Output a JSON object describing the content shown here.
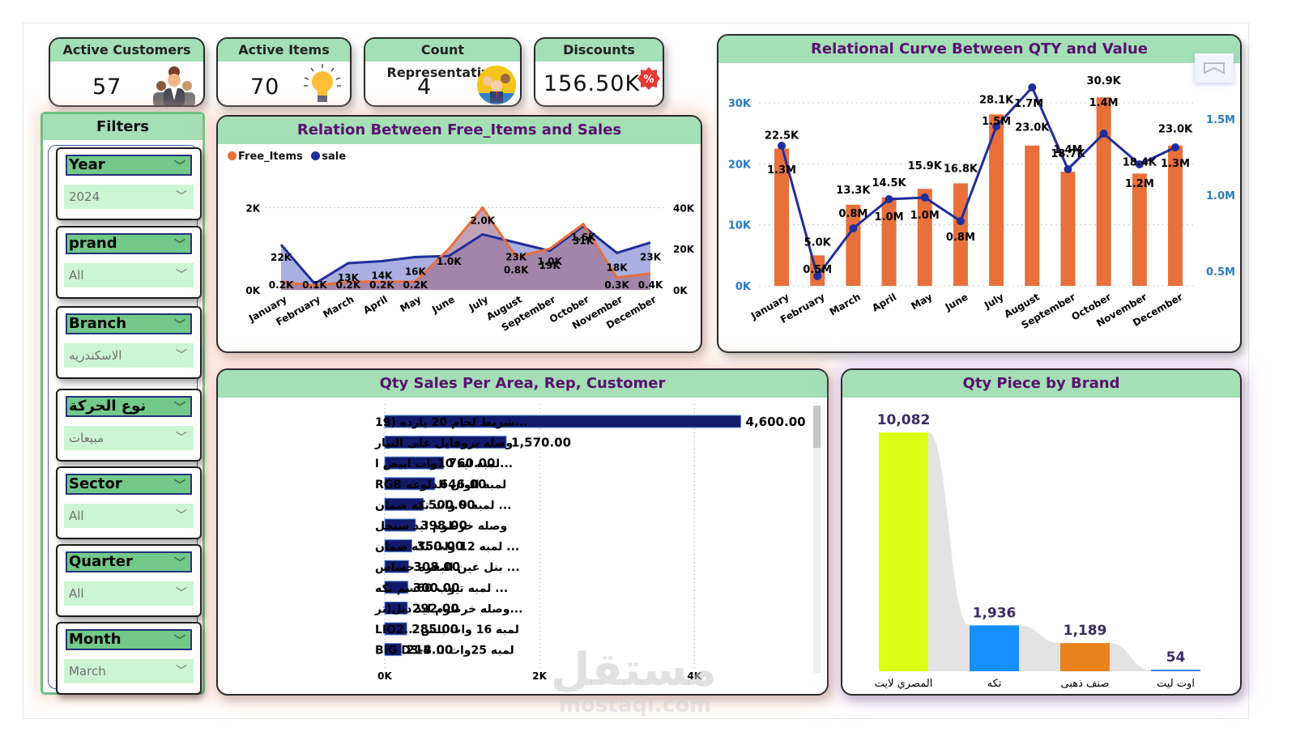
{
  "kpis": [
    {
      "title": "Active Customers",
      "value": "57",
      "icon": "customers-icon"
    },
    {
      "title": "Active Items",
      "value": "70",
      "icon": "lightbulb-icon"
    },
    {
      "title": "Count Representative",
      "value": "4",
      "icon": "team-icon"
    },
    {
      "title": "Discounts",
      "value": "156.50K",
      "icon": "percent-badge-icon"
    }
  ],
  "filters": {
    "title": "Filters",
    "slicers": [
      {
        "label": "Year",
        "value": "2024"
      },
      {
        "label": "prand",
        "value": "All"
      },
      {
        "label": "Branch",
        "value": "الاسكندريه"
      },
      {
        "label": "نوع الحركة",
        "value": "مبيعات"
      },
      {
        "label": "Sector",
        "value": "All"
      },
      {
        "label": "Quarter",
        "value": "All"
      },
      {
        "label": "Month",
        "value": "March"
      }
    ]
  },
  "chart_data": [
    {
      "id": "free-items-vs-sales",
      "type": "area",
      "title": "Relation Between Free_Items and Sales",
      "legend": [
        "Free_Items",
        "sale"
      ],
      "legend_position": "top-left",
      "colors": {
        "Free_Items": "#e8703a",
        "sale": "#1f2e9a"
      },
      "categories": [
        "January",
        "February",
        "March",
        "April",
        "May",
        "June",
        "July",
        "August",
        "September",
        "October",
        "November",
        "December"
      ],
      "series": [
        {
          "name": "Free_Items",
          "axis": "left",
          "values": [
            0.2,
            0.1,
            0.2,
            0.2,
            0.2,
            1.0,
            2.0,
            0.8,
            1.0,
            1.6,
            0.3,
            0.4
          ],
          "unit": "K",
          "labels": [
            "0.2K",
            "0.1K",
            "0.2K",
            "0.2K",
            "0.2K",
            "1.0K",
            "2.0K",
            "0.8K",
            "1.0K",
            "1.6K",
            "0.3K",
            "0.4K"
          ]
        },
        {
          "name": "sale",
          "axis": "right",
          "values": [
            22,
            3,
            13,
            14,
            16,
            16.5,
            27,
            23,
            19,
            31,
            18,
            23
          ],
          "unit": "K",
          "labels": [
            "22K",
            "",
            "13K",
            "14K",
            "16K",
            "",
            "",
            "23K",
            "19K",
            "31K",
            "18K",
            "23K"
          ]
        }
      ],
      "left_axis": {
        "ticks": [
          "0K",
          "2K"
        ],
        "range": [
          0,
          2.6
        ]
      },
      "right_axis": {
        "ticks": [
          "0K",
          "20K",
          "40K"
        ],
        "range": [
          0,
          52
        ]
      },
      "grid": true
    },
    {
      "id": "qty-vs-value",
      "type": "bar",
      "title": "Relational Curve Between QTY and Value",
      "categories": [
        "January",
        "February",
        "March",
        "April",
        "May",
        "June",
        "July",
        "August",
        "September",
        "October",
        "November",
        "December"
      ],
      "series": [
        {
          "name": "QTY",
          "type": "bar",
          "axis": "left",
          "color": "#e8703a",
          "values": [
            22.5,
            5.0,
            13.3,
            14.5,
            15.9,
            16.8,
            28.1,
            23.0,
            18.7,
            30.9,
            18.4,
            23.0
          ],
          "labels": [
            "22.5K",
            "5.0K",
            "13.3K",
            "14.5K",
            "15.9K",
            "16.8K",
            "28.1K",
            "23.0K",
            "18.7K",
            "30.9K",
            "18.4K",
            "23.0K"
          ]
        },
        {
          "name": "Value",
          "type": "line",
          "axis": "right",
          "color": "#1f2e9a",
          "values": [
            1.3,
            0.5,
            0.8,
            1.0,
            1.0,
            0.8,
            1.5,
            1.7,
            1.4,
            1.4,
            1.2,
            1.3
          ],
          "labels": [
            "1.3M",
            "0.5M",
            "0.8M",
            "1.0M",
            "1.0M",
            "0.8M",
            "1.5M",
            "1.7M",
            "1.4M",
            "1.4M",
            "1.2M",
            "1.3M"
          ]
        }
      ],
      "left_axis": {
        "ticks": [
          "0K",
          "10K",
          "20K",
          "30K"
        ],
        "range": [
          0,
          30
        ]
      },
      "right_axis": {
        "ticks": [
          "0.5M",
          "1.0M",
          "1.5M"
        ],
        "range": [
          0.4,
          1.75
        ]
      },
      "grid": true
    },
    {
      "id": "qty-sales-per-area",
      "type": "bar",
      "orientation": "horizontal",
      "title": "Qty Sales Per Area, Rep, Customer",
      "color": "#121a6b",
      "categories": [
        "...شريط لحام 20 يارده (19",
        "وصله بروفايل على التيار",
        "...لمبه ليد 10وات ابيض ا",
        "RGB لمبه الوان الدلوعه",
        "... لمبه 9 وات تكه ضمان",
        "وصله خرطوم ليد سنجل",
        "... لمبه 12 وات تكه ضمان",
        "... بنل عين البقره حساس",
        "... لمبه تيوب 60سم تكه",
        "...وصله خرطوم ليد دبل(تر",
        "LIO2... لمبه 16 وات بلس",
        "BIG D3-B... لمبه 25وات"
      ],
      "values": [
        4600,
        1570,
        760,
        646,
        500,
        398,
        350,
        308,
        300,
        292,
        285,
        214
      ],
      "labels": [
        "4,600.00",
        "1,570.00",
        "760.00",
        "646.00",
        "500.00",
        "398.00",
        "350.00",
        "308.00",
        "300.00",
        "292.00",
        "285.00",
        "214.00"
      ],
      "x_axis": {
        "ticks": [
          "0K",
          "2K",
          "4K"
        ],
        "range": [
          0,
          4900
        ]
      },
      "grid": true
    },
    {
      "id": "qty-piece-by-brand",
      "type": "bar",
      "title": "Qty Piece by Brand",
      "categories": [
        "المصري لايت",
        "تكه",
        "صنف ذهبى",
        "اوت ليت"
      ],
      "values": [
        10082,
        1936,
        1189,
        54
      ],
      "labels": [
        "10,082",
        "1,936",
        "1,189",
        "54"
      ],
      "colors": [
        "#dcff14",
        "#1690ff",
        "#e8821c",
        "#3b7fd6"
      ],
      "ylim": [
        0,
        10082
      ]
    }
  ],
  "watermark": {
    "arabic": "مستقل",
    "latin": "mostaql.com"
  }
}
